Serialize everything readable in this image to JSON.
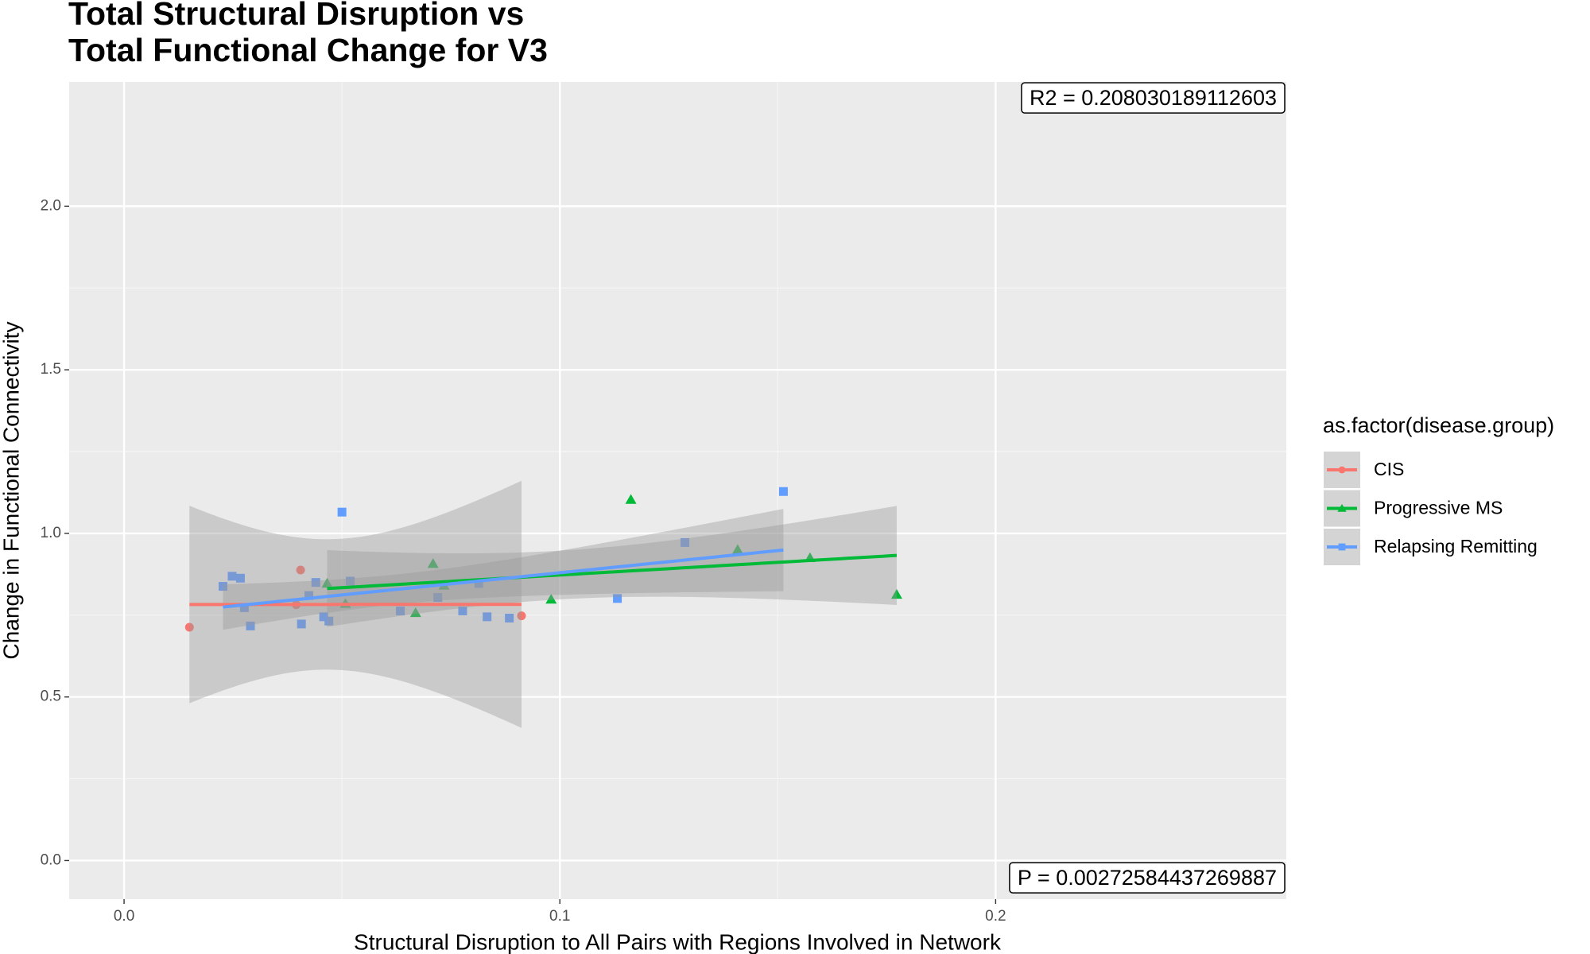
{
  "chart_data": {
    "type": "scatter",
    "title_lines": [
      "Total Structural Disruption vs",
      "Total Functional Change for V3"
    ],
    "x_label": "Structural Disruption to All Pairs with Regions Involved in Network",
    "y_label": "Change in Functional Connectivity",
    "legend_title": "as.factor(disease.group)",
    "legend_position": "right",
    "annotations": [
      "R2 =  0.208030189112603",
      "P =  0.00272584437269887"
    ],
    "xlim": [
      -0.0126,
      0.2667
    ],
    "ylim": [
      -0.118,
      2.38
    ],
    "xticks": [
      {
        "value": 0,
        "label": "0.0"
      },
      0.1,
      0.2
    ],
    "yticks": [
      {
        "value": 0,
        "label": "0.0"
      },
      0.5,
      {
        "value": 1,
        "label": "1.0"
      },
      1.5,
      {
        "value": 2,
        "label": "2.0"
      }
    ],
    "grid": true,
    "smooth": "lm",
    "series": [
      {
        "name": "CIS",
        "color": "#F8766D",
        "shape": "circle",
        "x": [
          0.015,
          0.0405,
          0.0395,
          0.0912
        ],
        "values": [
          0.713,
          0.888,
          0.782,
          0.748
        ]
      },
      {
        "name": "Progressive MS",
        "color": "#00BA38",
        "shape": "triangle",
        "x": [
          0.0466,
          0.0709,
          0.0669,
          0.0508,
          0.0734,
          0.098,
          0.1163,
          0.1408,
          0.1574,
          0.1773
        ],
        "values": [
          0.847,
          0.907,
          0.757,
          0.785,
          0.841,
          0.798,
          1.103,
          0.95,
          0.925,
          0.813
        ]
      },
      {
        "name": "Relapsing Remitting",
        "color": "#619CFF",
        "shape": "square",
        "x": [
          0.0227,
          0.0248,
          0.0267,
          0.0276,
          0.029,
          0.0407,
          0.0424,
          0.044,
          0.0458,
          0.047,
          0.05,
          0.0519,
          0.0634,
          0.072,
          0.0777,
          0.0814,
          0.0833,
          0.0884,
          0.1132,
          0.1287,
          0.1513
        ],
        "values": [
          0.838,
          0.869,
          0.863,
          0.773,
          0.717,
          0.723,
          0.81,
          0.85,
          0.745,
          0.732,
          1.065,
          0.854,
          0.763,
          0.804,
          0.763,
          0.847,
          0.745,
          0.741,
          0.801,
          0.972,
          1.128
        ]
      }
    ]
  }
}
